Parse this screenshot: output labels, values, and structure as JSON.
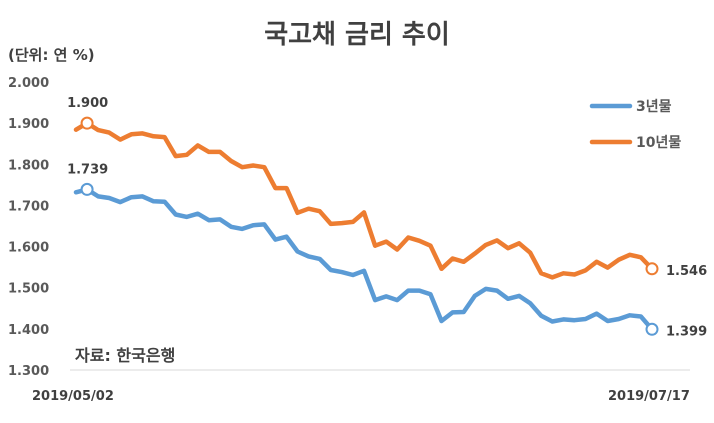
{
  "chart_data": {
    "type": "line",
    "title": "국고채 금리 추이",
    "unit_label": "(단위: 연 %)",
    "source": "자료: 한국은행",
    "ylim": [
      1.3,
      2.0
    ],
    "yticks": [
      "1.300",
      "1.400",
      "1.500",
      "1.600",
      "1.700",
      "1.800",
      "1.900",
      "2.000"
    ],
    "x_start_label": "2019/05/02",
    "x_end_label": "2019/07/17",
    "legend_position": "top-right",
    "grid": false,
    "series": [
      {
        "name": "3년물",
        "color": "#5B9BD5",
        "start_label": "1.739",
        "end_label": "1.399",
        "values": [
          1.732,
          1.739,
          1.722,
          1.718,
          1.708,
          1.72,
          1.722,
          1.71,
          1.709,
          1.678,
          1.672,
          1.68,
          1.664,
          1.666,
          1.648,
          1.643,
          1.652,
          1.654,
          1.617,
          1.624,
          1.588,
          1.576,
          1.57,
          1.543,
          1.538,
          1.531,
          1.541,
          1.47,
          1.479,
          1.47,
          1.493,
          1.493,
          1.484,
          1.419,
          1.44,
          1.441,
          1.48,
          1.497,
          1.493,
          1.473,
          1.48,
          1.462,
          1.432,
          1.418,
          1.423,
          1.421,
          1.424,
          1.437,
          1.419,
          1.424,
          1.433,
          1.43,
          1.399
        ]
      },
      {
        "name": "10년물",
        "color": "#ED7D31",
        "start_label": "1.900",
        "end_label": "1.546",
        "values": [
          1.884,
          1.9,
          1.883,
          1.877,
          1.86,
          1.873,
          1.875,
          1.868,
          1.866,
          1.82,
          1.823,
          1.846,
          1.83,
          1.83,
          1.808,
          1.793,
          1.797,
          1.793,
          1.742,
          1.742,
          1.682,
          1.692,
          1.686,
          1.655,
          1.657,
          1.66,
          1.683,
          1.602,
          1.612,
          1.593,
          1.622,
          1.614,
          1.602,
          1.546,
          1.571,
          1.563,
          1.583,
          1.604,
          1.615,
          1.596,
          1.608,
          1.585,
          1.535,
          1.525,
          1.535,
          1.532,
          1.542,
          1.563,
          1.549,
          1.568,
          1.58,
          1.574,
          1.546
        ]
      }
    ]
  }
}
